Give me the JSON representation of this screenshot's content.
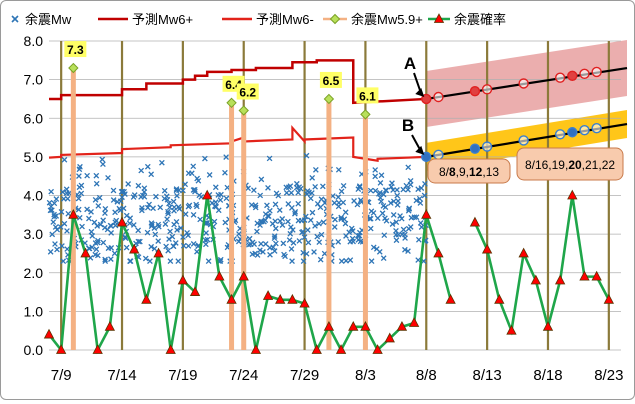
{
  "chart_data": {
    "type": "line",
    "title": "",
    "xlabel": "",
    "ylabel": "",
    "ylim": [
      0,
      8
    ],
    "yticks": [
      "0.0",
      "1.0",
      "2.0",
      "3.0",
      "4.0",
      "5.0",
      "6.0",
      "7.0",
      "8.0"
    ],
    "xlim": [
      "7/8",
      "8/24"
    ],
    "xticks": [
      "7/9",
      "7/14",
      "7/19",
      "7/24",
      "7/29",
      "8/3",
      "8/8",
      "8/13",
      "8/18",
      "8/23"
    ],
    "grid": "horizontal",
    "legend_position": "top",
    "legend": [
      "余震Mw",
      "予測Mw6+",
      "予測Mw6-",
      "余震Mw5.9+",
      "余震確率"
    ],
    "colors": {
      "aftershock": "#2e75b6",
      "pred_high": "#c00000",
      "pred_low": "#e2231a",
      "big_aftershock": "#9acd32",
      "probability": "#1fa64a",
      "prob_marker": "#ff0000",
      "highlight_bar": "#f4b183",
      "week_line": "#8b7a3a",
      "band_a": "#e8a0a0",
      "band_b": "#ffc000"
    },
    "series": [
      {
        "name": "予測Mw6+",
        "x": [
          "7/8",
          "7/9",
          "7/9",
          "7/14",
          "7/14",
          "7/16",
          "7/16",
          "7/19",
          "7/19",
          "7/20",
          "7/20",
          "7/21",
          "7/21",
          "7/23",
          "7/23",
          "7/25",
          "7/25",
          "7/28",
          "7/28",
          "7/30",
          "7/30",
          "8/2",
          "8/2",
          "8/8"
        ],
        "values": [
          6.5,
          6.5,
          6.6,
          6.6,
          6.75,
          6.75,
          6.9,
          6.9,
          7.0,
          7.0,
          7.1,
          7.1,
          7.2,
          7.2,
          7.25,
          7.25,
          7.3,
          7.3,
          7.45,
          7.45,
          7.5,
          7.5,
          6.4,
          6.5
        ]
      },
      {
        "name": "予測Mw6-",
        "x": [
          "7/8",
          "7/9",
          "7/9",
          "7/14",
          "7/14",
          "7/18",
          "7/18",
          "7/23",
          "7/23",
          "7/24",
          "7/24",
          "7/28",
          "7/28",
          "7/29",
          "7/29",
          "8/2",
          "8/2",
          "8/4",
          "8/4",
          "8/8"
        ],
        "values": [
          4.98,
          5.0,
          5.05,
          5.1,
          5.2,
          5.25,
          5.3,
          5.35,
          5.4,
          5.5,
          5.4,
          5.45,
          5.75,
          5.4,
          5.45,
          5.5,
          5.0,
          4.9,
          4.95,
          5.0
        ]
      },
      {
        "name": "余震Mw5.9+",
        "x": [
          "7/10",
          "7/23",
          "7/24",
          "7/31",
          "8/3"
        ],
        "values": [
          7.3,
          6.4,
          6.2,
          6.5,
          6.1
        ],
        "data_labels": [
          "7.3",
          "6.4",
          "6.2",
          "6.5",
          "6.1"
        ]
      },
      {
        "name": "余震確率",
        "x": [
          "7/8",
          "7/9",
          "7/10",
          "7/11",
          "7/12",
          "7/13",
          "7/14",
          "7/15",
          "7/16",
          "7/17",
          "7/18",
          "7/19",
          "7/20",
          "7/21",
          "7/22",
          "7/23",
          "7/24",
          "7/25",
          "7/26",
          "7/27",
          "7/28",
          "7/29",
          "7/30",
          "7/31",
          "8/1",
          "8/2",
          "8/3",
          "8/4",
          "8/5",
          "8/6",
          "8/7",
          "8/8",
          "8/9",
          "8/10",
          "8/11",
          "8/12",
          "8/13",
          "8/14",
          "8/15",
          "8/16",
          "8/17",
          "8/18",
          "8/19",
          "8/20",
          "8/21",
          "8/22",
          "8/23"
        ],
        "values": [
          0.4,
          0.0,
          3.5,
          2.5,
          0.0,
          0.6,
          3.3,
          2.6,
          1.3,
          2.5,
          0.0,
          1.8,
          1.5,
          4.0,
          1.9,
          1.3,
          1.9,
          0.0,
          1.4,
          1.3,
          1.3,
          1.2,
          0.0,
          0.6,
          0.0,
          0.6,
          0.6,
          0.0,
          0.3,
          0.6,
          0.7,
          3.5,
          2.5,
          1.3,
          null,
          3.3,
          2.6,
          1.3,
          0.5,
          2.5,
          1.8,
          0.6,
          1.8,
          4.0,
          1.9,
          1.9,
          1.3
        ],
        "pending_from": "8/11"
      }
    ],
    "scatter_summary": {
      "name": "余震Mw",
      "x_range": [
        "7/8",
        "8/8"
      ],
      "y_range": [
        2.3,
        5.7
      ],
      "center": 3.5,
      "points_per_day": 18
    },
    "forecast": {
      "A": {
        "label": "A",
        "x": [
          "8/8",
          "8/24"
        ],
        "values": [
          6.5,
          7.3
        ],
        "markers_x": [
          "8/9",
          "8/12",
          "8/13",
          "8/16",
          "8/19",
          "8/20",
          "8/21",
          "8/22"
        ],
        "highlight_x": [
          "8/8",
          "8/12",
          "8/20"
        ]
      },
      "B": {
        "label": "B",
        "x": [
          "8/8",
          "8/24"
        ],
        "values": [
          5.0,
          5.85
        ],
        "markers_x": [
          "8/9",
          "8/12",
          "8/13",
          "8/16",
          "8/19",
          "8/20",
          "8/21",
          "8/22"
        ],
        "highlight_x": [
          "8/8",
          "8/12",
          "8/20"
        ]
      }
    },
    "callouts": [
      {
        "parts": [
          {
            "t": "8/",
            "b": false
          },
          {
            "t": "8",
            "b": true
          },
          {
            "t": ",9,",
            "b": false
          },
          {
            "t": "12",
            "b": true
          },
          {
            "t": ",13",
            "b": false
          }
        ]
      },
      {
        "parts": [
          {
            "t": "8/16,19,",
            "b": false
          },
          {
            "t": "20",
            "b": true
          },
          {
            "t": ",21,22",
            "b": false
          }
        ]
      }
    ]
  }
}
